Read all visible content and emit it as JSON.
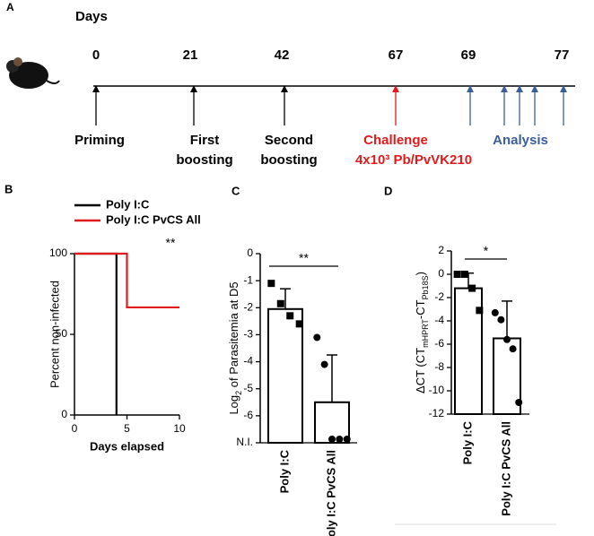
{
  "timeline": {
    "panel_label": "A",
    "axis_title": "Days",
    "days": [
      "0",
      "21",
      "42",
      "67",
      "69",
      "77"
    ],
    "events": [
      {
        "lines": [
          "Priming"
        ]
      },
      {
        "lines": [
          "First",
          "boosting"
        ]
      },
      {
        "lines": [
          "Second",
          "boosting"
        ]
      },
      {
        "lines": [
          "Challenge",
          "4x10³ Pb/PvVK210"
        ]
      },
      {
        "lines": [
          "Analysis"
        ]
      }
    ]
  },
  "chart_data": [
    {
      "type": "line",
      "panel_label": "B",
      "xlabel": "Days elapsed",
      "ylabel": "Percent non-infected",
      "xlim": [
        0,
        10
      ],
      "xticks": [
        0,
        5,
        10
      ],
      "ylim": [
        0,
        100
      ],
      "yticks": [
        0,
        50,
        100
      ],
      "series": [
        {
          "name": "Poly I:C",
          "color": "#000000",
          "x": [
            0,
            4,
            4
          ],
          "values": [
            100,
            100,
            0
          ]
        },
        {
          "name": "Poly I:C PvCS All",
          "color": "#e31a1c",
          "x": [
            0,
            5,
            5,
            10
          ],
          "values": [
            100,
            100,
            66.7,
            66.7
          ]
        }
      ],
      "annotation": "**"
    },
    {
      "type": "bar",
      "panel_label": "C",
      "ylabel": [
        "Log",
        "2",
        " of Parasitemia at D5"
      ],
      "categories": [
        "Poly I:C",
        "Poly I:C PvCS All"
      ],
      "values": [
        -2.05,
        -5.5
      ],
      "errors": [
        0.75,
        1.75
      ],
      "points": [
        [
          -1.1,
          -1.85,
          -2.3,
          -2.6
        ],
        [
          -3.1,
          -4.1,
          -7,
          -7,
          -7
        ]
      ],
      "ylim": [
        -7,
        0
      ],
      "yticks": [
        0,
        -1,
        -2,
        -3,
        -4,
        -5,
        -6,
        {
          "value": -7,
          "label": "N.I."
        }
      ],
      "annotation": "**"
    },
    {
      "type": "bar",
      "panel_label": "D",
      "ylabel": [
        "ΔCT (CT",
        "mHPRT",
        "-CT",
        "Pb18S",
        ")"
      ],
      "categories": [
        "Poly I:C",
        "Poly I:C PvCS All"
      ],
      "values": [
        -1.2,
        -5.5
      ],
      "errors": [
        1.3,
        3.2
      ],
      "points": [
        [
          0,
          0,
          -1.2,
          -3.1
        ],
        [
          -3.3,
          -3.9,
          -5.6,
          -6.4,
          -11
        ]
      ],
      "ylim": [
        -12,
        2
      ],
      "yticks": [
        2,
        0,
        -2,
        -4,
        -6,
        -8,
        -10,
        -12
      ],
      "annotation": "*"
    }
  ]
}
